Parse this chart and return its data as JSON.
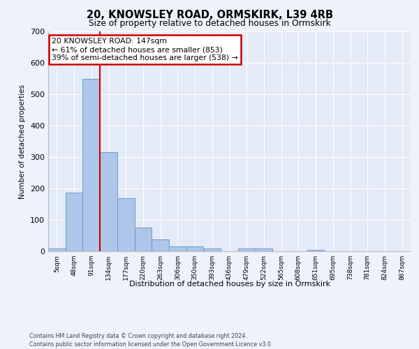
{
  "title1": "20, KNOWSLEY ROAD, ORMSKIRK, L39 4RB",
  "title2": "Size of property relative to detached houses in Ormskirk",
  "xlabel": "Distribution of detached houses by size in Ormskirk",
  "ylabel": "Number of detached properties",
  "categories": [
    "5sqm",
    "48sqm",
    "91sqm",
    "134sqm",
    "177sqm",
    "220sqm",
    "263sqm",
    "306sqm",
    "350sqm",
    "393sqm",
    "436sqm",
    "479sqm",
    "522sqm",
    "565sqm",
    "608sqm",
    "651sqm",
    "695sqm",
    "738sqm",
    "781sqm",
    "824sqm",
    "867sqm"
  ],
  "values": [
    8,
    187,
    548,
    315,
    168,
    76,
    38,
    15,
    15,
    10,
    0,
    10,
    10,
    0,
    0,
    5,
    0,
    0,
    0,
    0,
    0
  ],
  "bar_color": "#aec6e8",
  "bar_edge_color": "#5a96c8",
  "property_line_x": 2.5,
  "annotation_text": "20 KNOWSLEY ROAD: 147sqm\n← 61% of detached houses are smaller (853)\n39% of semi-detached houses are larger (538) →",
  "annotation_box_color": "#ffffff",
  "annotation_box_edge": "#cc0000",
  "red_line_color": "#cc0000",
  "ylim": [
    0,
    700
  ],
  "yticks": [
    0,
    100,
    200,
    300,
    400,
    500,
    600,
    700
  ],
  "footer": "Contains HM Land Registry data © Crown copyright and database right 2024.\nContains public sector information licensed under the Open Government Licence v3.0.",
  "background_color": "#eef2fb",
  "plot_background": "#e4eaf6"
}
